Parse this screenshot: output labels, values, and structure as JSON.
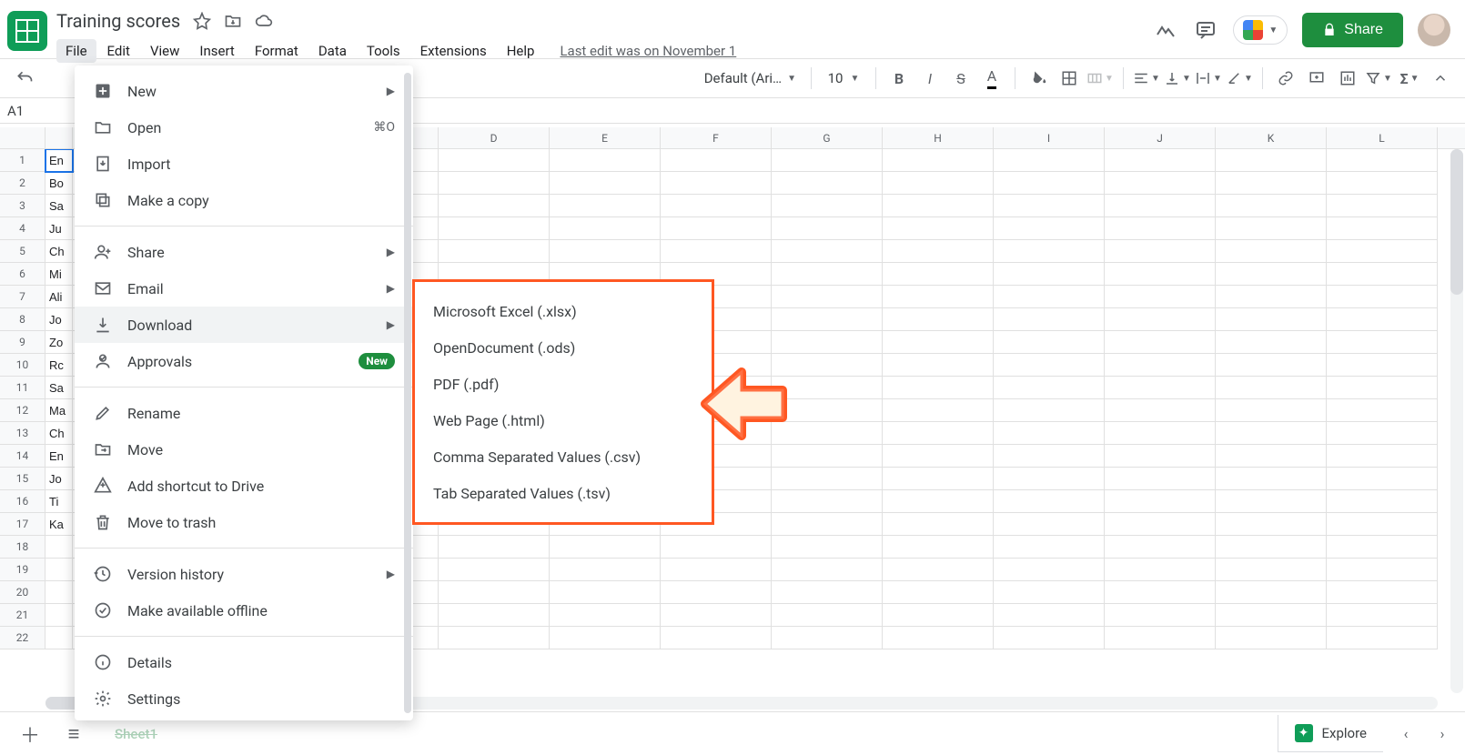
{
  "doc": {
    "title": "Training scores"
  },
  "menubar": {
    "items": [
      "File",
      "Edit",
      "View",
      "Insert",
      "Format",
      "Data",
      "Tools",
      "Extensions",
      "Help"
    ],
    "active_index": 0,
    "last_edit": "Last edit was on November 1"
  },
  "share": {
    "label": "Share"
  },
  "toolbar": {
    "font": "Default (Ari…",
    "size": "10"
  },
  "namebox": {
    "value": "A1"
  },
  "file_menu": [
    {
      "icon": "plus-box",
      "label": "New",
      "right": "",
      "arrow": true
    },
    {
      "icon": "folder",
      "label": "Open",
      "right": "⌘O",
      "arrow": false
    },
    {
      "icon": "import",
      "label": "Import",
      "right": "",
      "arrow": false
    },
    {
      "icon": "copy",
      "label": "Make a copy",
      "right": "",
      "arrow": false
    },
    {
      "sep": true
    },
    {
      "icon": "person-add",
      "label": "Share",
      "right": "",
      "arrow": true
    },
    {
      "icon": "mail",
      "label": "Email",
      "right": "",
      "arrow": true
    },
    {
      "icon": "download",
      "label": "Download",
      "right": "",
      "arrow": true,
      "hover": true
    },
    {
      "icon": "approvals",
      "label": "Approvals",
      "right": "",
      "badge": "New"
    },
    {
      "sep": true
    },
    {
      "icon": "pencil",
      "label": "Rename",
      "right": "",
      "arrow": false
    },
    {
      "icon": "move",
      "label": "Move",
      "right": "",
      "arrow": false
    },
    {
      "icon": "add-drive",
      "label": "Add shortcut to Drive",
      "right": ""
    },
    {
      "icon": "trash",
      "label": "Move to trash",
      "right": ""
    },
    {
      "sep": true
    },
    {
      "icon": "history",
      "label": "Version history",
      "arrow": true
    },
    {
      "icon": "offline",
      "label": "Make available offline"
    },
    {
      "sep": true
    },
    {
      "icon": "info",
      "label": "Details"
    },
    {
      "icon": "gear",
      "label": "Settings"
    }
  ],
  "download_submenu": [
    "Microsoft Excel (.xlsx)",
    "OpenDocument (.ods)",
    "PDF (.pdf)",
    "Web Page (.html)",
    "Comma Separated Values (.csv)",
    "Tab Separated Values (.tsv)"
  ],
  "columns": [
    "D",
    "E",
    "F",
    "G",
    "H",
    "I",
    "J",
    "K",
    "L"
  ],
  "cells_A": [
    "En",
    "Bo",
    "Sa",
    "Ju",
    "Ch",
    "Mi",
    "Ali",
    "Jo",
    "Zo",
    "Rc",
    "Sa",
    "Ma",
    "Ch",
    "En",
    "Jo",
    "Ti",
    "Ka",
    "",
    "",
    "",
    "",
    ""
  ],
  "bottom": {
    "sheet_tab": "Sheet1",
    "explore": "Explore"
  },
  "colors": {
    "annotation_outline": "#ff5722",
    "annotation_fill": "#ffe0b2",
    "brand_green": "#0f9d58",
    "share_green": "#1e8e3e"
  }
}
